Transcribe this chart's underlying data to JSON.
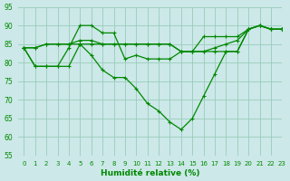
{
  "xlabel": "Humidité relative (%)",
  "bg_color": "#cce8e8",
  "grid_color": "#99ccbb",
  "line_color": "#008800",
  "ylim": [
    55,
    95
  ],
  "xlim": [
    -0.5,
    23
  ],
  "yticks": [
    55,
    60,
    65,
    70,
    75,
    80,
    85,
    90,
    95
  ],
  "xticks": [
    0,
    1,
    2,
    3,
    4,
    5,
    6,
    7,
    8,
    9,
    10,
    11,
    12,
    13,
    14,
    15,
    16,
    17,
    18,
    19,
    20,
    21,
    22,
    23
  ],
  "series": [
    [
      84,
      79,
      79,
      79,
      84,
      90,
      90,
      88,
      88,
      81,
      82,
      81,
      81,
      81,
      83,
      83,
      83,
      84,
      85,
      86,
      89,
      90,
      89,
      89
    ],
    [
      84,
      84,
      85,
      85,
      85,
      86,
      86,
      85,
      85,
      85,
      85,
      85,
      85,
      85,
      83,
      83,
      83,
      83,
      83,
      83,
      89,
      90,
      89,
      89
    ],
    [
      84,
      84,
      85,
      85,
      85,
      85,
      85,
      85,
      85,
      85,
      85,
      85,
      85,
      85,
      83,
      83,
      87,
      87,
      87,
      87,
      89,
      90,
      89,
      89
    ],
    [
      84,
      79,
      79,
      79,
      79,
      85,
      82,
      78,
      76,
      76,
      73,
      69,
      67,
      64,
      62,
      65,
      71,
      77,
      83,
      83,
      89,
      90,
      89,
      89
    ]
  ]
}
